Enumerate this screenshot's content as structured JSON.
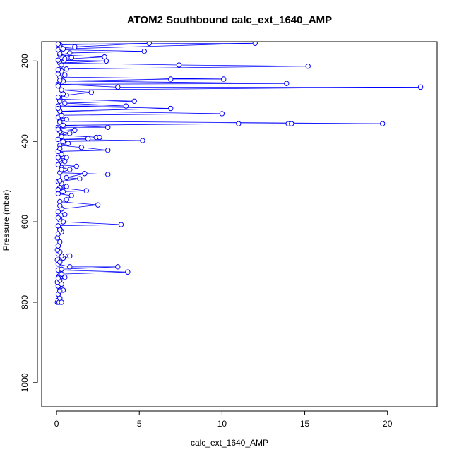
{
  "chart_data": {
    "type": "scatter",
    "title": "ATOM2 Southbound calc_ext_1640_AMP",
    "xlabel": "calc_ext_1640_AMP",
    "ylabel": "Pressure (mbar)",
    "xlim": [
      -0.9,
      23.0
    ],
    "ylim": [
      1060,
      152
    ],
    "y_reversed": true,
    "x_ticks": [
      0,
      5,
      10,
      15,
      20
    ],
    "y_ticks": [
      200,
      400,
      600,
      800,
      1000
    ],
    "marker": "open-circle",
    "connected_lines": true,
    "grid": false,
    "legend": "none",
    "colors": {
      "series": "#0000ff",
      "axes": "#000000",
      "background": "#ffffff"
    },
    "series": [
      {
        "points": [
          [
            0.05,
            800
          ],
          [
            0.1,
            795
          ],
          [
            0.15,
            800
          ],
          [
            0.2,
            790
          ],
          [
            0.3,
            800
          ],
          [
            0.1,
            780
          ],
          [
            0.2,
            770
          ],
          [
            0.4,
            770
          ],
          [
            0.1,
            760
          ],
          [
            0.3,
            755
          ],
          [
            0.05,
            750
          ],
          [
            0.2,
            745
          ],
          [
            0.5,
            738
          ],
          [
            0.15,
            735
          ],
          [
            0.3,
            730
          ],
          [
            4.3,
            725
          ],
          [
            0.1,
            720
          ],
          [
            0.3,
            718
          ],
          [
            3.7,
            712
          ],
          [
            0.8,
            712
          ],
          [
            0.1,
            705
          ],
          [
            0.2,
            700
          ],
          [
            0.05,
            695
          ],
          [
            0.4,
            690
          ],
          [
            0.7,
            685
          ],
          [
            0.8,
            685
          ],
          [
            0.3,
            685
          ],
          [
            0.1,
            680
          ],
          [
            0.2,
            675
          ],
          [
            0.05,
            670
          ],
          [
            0.1,
            660
          ],
          [
            0.2,
            650
          ],
          [
            0.05,
            640
          ],
          [
            0.1,
            630
          ],
          [
            0.3,
            625
          ],
          [
            0.2,
            618
          ],
          [
            0.1,
            610
          ],
          [
            3.9,
            607
          ],
          [
            0.4,
            600
          ],
          [
            0.2,
            595
          ],
          [
            0.5,
            582
          ],
          [
            0.1,
            575
          ],
          [
            0.3,
            568
          ],
          [
            2.5,
            558
          ],
          [
            0.2,
            550
          ],
          [
            0.6,
            545
          ],
          [
            0.9,
            535
          ],
          [
            0.1,
            530
          ],
          [
            0.4,
            525
          ],
          [
            1.8,
            523
          ],
          [
            0.2,
            515
          ],
          [
            0.6,
            512
          ],
          [
            0.3,
            505
          ],
          [
            0.1,
            500
          ],
          [
            1.4,
            493
          ],
          [
            0.6,
            490
          ],
          [
            1.7,
            480
          ],
          [
            3.1,
            482
          ],
          [
            0.2,
            478
          ],
          [
            0.8,
            470
          ],
          [
            0.3,
            465
          ],
          [
            1.2,
            462
          ],
          [
            0.1,
            458
          ],
          [
            0.5,
            450
          ],
          [
            0.2,
            445
          ],
          [
            0.6,
            440
          ],
          [
            0.3,
            432
          ],
          [
            0.1,
            425
          ],
          [
            3.1,
            422
          ],
          [
            1.5,
            415
          ],
          [
            0.2,
            410
          ],
          [
            0.7,
            405
          ],
          [
            0.4,
            400
          ],
          [
            5.2,
            398
          ],
          [
            0.1,
            395
          ],
          [
            1.9,
            393
          ],
          [
            2.4,
            390
          ],
          [
            2.6,
            390
          ],
          [
            0.3,
            385
          ],
          [
            0.8,
            380
          ],
          [
            0.2,
            375
          ],
          [
            1.1,
            372
          ],
          [
            0.1,
            365
          ],
          [
            3.1,
            365
          ],
          [
            0.4,
            360
          ],
          [
            11.0,
            356
          ],
          [
            14.0,
            356
          ],
          [
            14.2,
            356
          ],
          [
            19.7,
            356
          ],
          [
            0.2,
            350
          ],
          [
            0.6,
            345
          ],
          [
            0.1,
            340
          ],
          [
            0.3,
            335
          ],
          [
            10.0,
            331
          ],
          [
            0.2,
            325
          ],
          [
            6.9,
            318
          ],
          [
            0.1,
            312
          ],
          [
            4.2,
            312
          ],
          [
            0.5,
            305
          ],
          [
            4.7,
            300
          ],
          [
            0.2,
            295
          ],
          [
            0.1,
            290
          ],
          [
            0.6,
            285
          ],
          [
            2.1,
            278
          ],
          [
            0.3,
            272
          ],
          [
            22.0,
            265
          ],
          [
            3.7,
            265
          ],
          [
            0.1,
            258
          ],
          [
            13.9,
            256
          ],
          [
            0.4,
            250
          ],
          [
            6.9,
            245
          ],
          [
            10.1,
            245
          ],
          [
            0.2,
            240
          ],
          [
            0.1,
            232
          ],
          [
            0.3,
            225
          ],
          [
            0.6,
            220
          ],
          [
            15.2,
            213
          ],
          [
            7.4,
            210
          ],
          [
            0.2,
            205
          ],
          [
            3.0,
            200
          ],
          [
            0.1,
            198
          ],
          [
            0.5,
            195
          ],
          [
            2.9,
            190
          ],
          [
            0.2,
            185
          ],
          [
            0.8,
            180
          ],
          [
            5.3,
            176
          ],
          [
            0.1,
            172
          ],
          [
            0.3,
            168
          ],
          [
            1.1,
            165
          ],
          [
            5.6,
            156
          ],
          [
            0.2,
            160
          ],
          [
            0.1,
            158
          ],
          [
            12.0,
            156
          ],
          [
            0.4,
            170
          ],
          [
            0.2,
            182
          ],
          [
            0.9,
            192
          ],
          [
            0.3,
            210
          ],
          [
            0.1,
            222
          ],
          [
            0.5,
            235
          ],
          [
            0.2,
            248
          ],
          [
            0.1,
            262
          ],
          [
            0.4,
            282
          ],
          [
            0.2,
            300
          ],
          [
            0.1,
            318
          ],
          [
            0.3,
            336
          ],
          [
            0.2,
            352
          ],
          [
            0.1,
            370
          ],
          [
            0.3,
            388
          ],
          [
            0.2,
            418
          ],
          [
            0.1,
            440
          ],
          [
            0.3,
            470
          ],
          [
            0.2,
            498
          ],
          [
            0.1,
            520
          ],
          [
            0.2,
            560
          ],
          [
            0.1,
            590
          ],
          [
            0.2,
            620
          ],
          [
            0.1,
            660
          ],
          [
            0.2,
            700
          ],
          [
            0.1,
            740
          ],
          [
            0.2,
            772
          ]
        ]
      }
    ]
  }
}
